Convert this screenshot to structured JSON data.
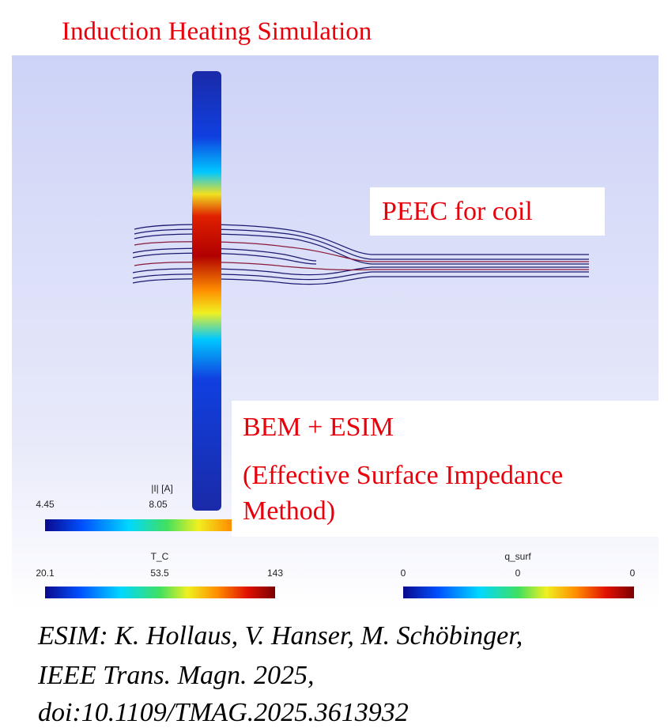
{
  "header": {
    "title": "Induction Heating Simulation"
  },
  "figure": {
    "labels": {
      "peec": "PEEC for coil",
      "bem": "BEM + ESIM",
      "esim_line1": "(Effective Surface Impedance",
      "esim_line2": "Method)"
    },
    "colorbars": [
      {
        "title": "|I| [A]",
        "ticks": [
          "4.45",
          "8.05"
        ]
      },
      {
        "title": "T_C",
        "ticks": [
          "20.1",
          "53.5",
          "143"
        ]
      },
      {
        "title": "q_surf",
        "ticks": [
          "0",
          "0",
          "0"
        ]
      }
    ]
  },
  "citation": {
    "lines": [
      "ESIM: K. Hollaus, V. Hanser, M. Schöbinger,",
      "IEEE Trans. Magn. 2025,",
      "doi:10.1109/TMAG.2025.3613932"
    ]
  }
}
